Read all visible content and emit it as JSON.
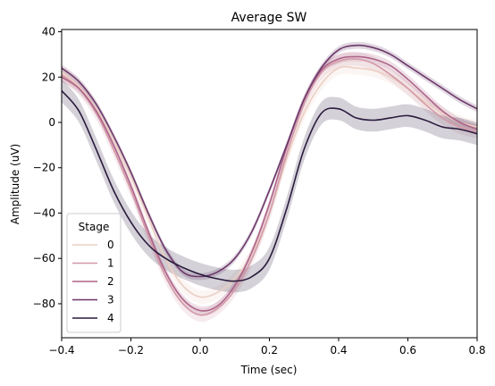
{
  "chart_data": {
    "type": "line",
    "title": "Average SW",
    "xlabel": "Time (sec)",
    "ylabel": "Amplitude (uV)",
    "xlim": [
      -0.4,
      0.8
    ],
    "ylim": [
      -95,
      41
    ],
    "xticks": [
      -0.4,
      -0.2,
      0.0,
      0.2,
      0.4,
      0.6,
      0.8
    ],
    "xtick_labels": [
      "−0.4",
      "−0.2",
      "0.0",
      "0.2",
      "0.4",
      "0.6",
      "0.8"
    ],
    "yticks": [
      40,
      20,
      0,
      -20,
      -40,
      -60,
      -80
    ],
    "ytick_labels": [
      "40",
      "20",
      "0",
      "−20",
      "−40",
      "−60",
      "−80"
    ],
    "grid": false,
    "legend": {
      "title": "Stage",
      "placement": "lower-left"
    },
    "x": [
      -0.4,
      -0.35,
      -0.3,
      -0.25,
      -0.2,
      -0.15,
      -0.1,
      -0.05,
      0.0,
      0.05,
      0.1,
      0.15,
      0.2,
      0.25,
      0.3,
      0.35,
      0.4,
      0.45,
      0.5,
      0.55,
      0.6,
      0.65,
      0.7,
      0.75,
      0.8
    ],
    "series": [
      {
        "name": "0",
        "color": "#eccfc3",
        "band": 3,
        "values": [
          22,
          16,
          6,
          -8,
          -24,
          -42,
          -60,
          -72,
          -77,
          -75,
          -69,
          -58,
          -40,
          -16,
          4,
          17,
          24,
          24,
          23,
          20,
          15,
          9,
          4,
          0,
          -2
        ]
      },
      {
        "name": "1",
        "color": "#d399a8",
        "band": 3,
        "values": [
          21,
          15,
          4,
          -12,
          -30,
          -50,
          -68,
          -80,
          -85,
          -82,
          -74,
          -60,
          -40,
          -14,
          8,
          22,
          27,
          28,
          26,
          21,
          15,
          8,
          2,
          -2,
          -4
        ]
      },
      {
        "name": "2",
        "color": "#ad6489",
        "band": 2,
        "values": [
          20,
          15,
          5,
          -10,
          -28,
          -48,
          -66,
          -78,
          -83,
          -81,
          -72,
          -57,
          -36,
          -11,
          10,
          23,
          28,
          29,
          28,
          25,
          19,
          12,
          5,
          0,
          -3
        ]
      },
      {
        "name": "3",
        "color": "#6b3769",
        "band": 1.5,
        "values": [
          24,
          18,
          8,
          -6,
          -22,
          -40,
          -56,
          -66,
          -68,
          -66,
          -60,
          -48,
          -30,
          -10,
          10,
          24,
          32,
          34,
          33,
          30,
          25,
          20,
          15,
          10,
          6
        ]
      },
      {
        "name": "4",
        "color": "#2a1b3d",
        "band": 5,
        "values": [
          14,
          5,
          -12,
          -30,
          -44,
          -54,
          -60,
          -64,
          -67,
          -69,
          -70,
          -68,
          -60,
          -38,
          -12,
          4,
          6,
          2,
          1,
          2,
          3,
          1,
          -2,
          -3,
          -5
        ]
      }
    ]
  }
}
